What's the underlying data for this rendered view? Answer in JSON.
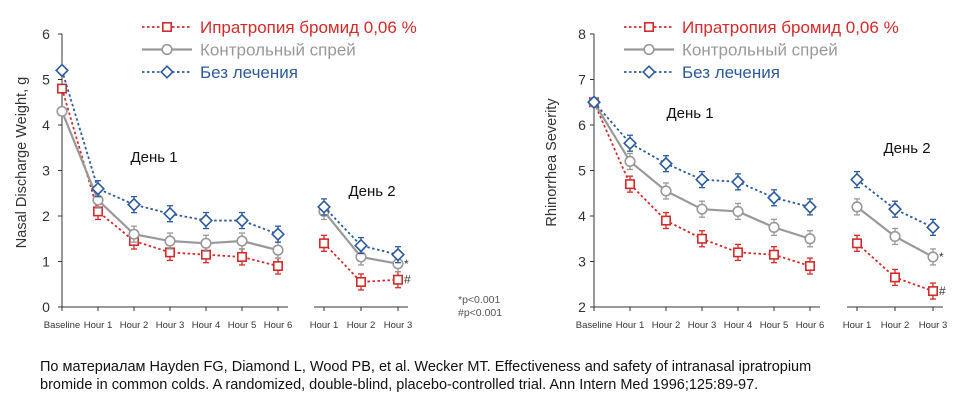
{
  "chart_data": [
    {
      "type": "line",
      "ylabel": "Nasal Discharge Weight, g",
      "ylim": [
        0,
        6
      ],
      "yticks": [
        "0",
        "1",
        "2",
        "3",
        "4",
        "5",
        "6"
      ],
      "legend_position": "top-center",
      "day_labels": {
        "day1": "День 1",
        "day2": "День 2"
      },
      "significance_note": [
        "*p<0.001",
        "#p<0.001"
      ],
      "panels": [
        {
          "categories": [
            "Baseline",
            "Hour 1",
            "Hour 2",
            "Hour 3",
            "Hour 4",
            "Hour 5",
            "Hour 6"
          ],
          "series": [
            {
              "name": "Ипратропия бромид 0,06 %",
              "color": "#d42a2a",
              "marker": "square",
              "dash": "dotted",
              "values": [
                4.8,
                2.1,
                1.45,
                1.2,
                1.15,
                1.1,
                0.9
              ]
            },
            {
              "name": "Контрольный спрей",
              "color": "#999999",
              "marker": "circle",
              "dash": "solid",
              "values": [
                4.3,
                2.35,
                1.6,
                1.45,
                1.4,
                1.45,
                1.25
              ]
            },
            {
              "name": "Без лечения",
              "color": "#2d5a9b",
              "marker": "diamond",
              "dash": "dotted",
              "values": [
                5.2,
                2.6,
                2.25,
                2.05,
                1.9,
                1.9,
                1.6
              ]
            }
          ]
        },
        {
          "categories": [
            "Hour 1",
            "Hour 2",
            "Hour 3"
          ],
          "series": [
            {
              "name": "Ипратропия бромид 0,06 %",
              "values": [
                1.4,
                0.55,
                0.6
              ]
            },
            {
              "name": "Контрольный спрей",
              "values": [
                2.1,
                1.1,
                0.95
              ]
            },
            {
              "name": "Без лечения",
              "values": [
                2.2,
                1.35,
                1.15
              ]
            }
          ],
          "markers": [
            "*",
            "#"
          ]
        }
      ]
    },
    {
      "type": "line",
      "ylabel": "Rhinorrhea Severity",
      "ylim": [
        2,
        8
      ],
      "yticks": [
        "2",
        "3",
        "4",
        "5",
        "6",
        "7",
        "8"
      ],
      "legend_position": "top-center",
      "day_labels": {
        "day1": "День 1",
        "day2": "День 2"
      },
      "panels": [
        {
          "categories": [
            "Baseline",
            "Hour 1",
            "Hour 2",
            "Hour 3",
            "Hour 4",
            "Hour 5",
            "Hour 6"
          ],
          "series": [
            {
              "name": "Ипратропия бромид 0,06 %",
              "color": "#d42a2a",
              "marker": "square",
              "dash": "dotted",
              "values": [
                6.5,
                4.7,
                3.9,
                3.5,
                3.2,
                3.15,
                2.9
              ]
            },
            {
              "name": "Контрольный спрей",
              "color": "#999999",
              "marker": "circle",
              "dash": "solid",
              "values": [
                6.5,
                5.2,
                4.55,
                4.15,
                4.1,
                3.75,
                3.5
              ]
            },
            {
              "name": "Без лечения",
              "color": "#2d5a9b",
              "marker": "diamond",
              "dash": "dotted",
              "values": [
                6.5,
                5.6,
                5.15,
                4.8,
                4.75,
                4.4,
                4.2
              ]
            }
          ]
        },
        {
          "categories": [
            "Hour 1",
            "Hour 2",
            "Hour 3"
          ],
          "series": [
            {
              "name": "Ипратропия бромид 0,06 %",
              "values": [
                3.4,
                2.65,
                2.35
              ]
            },
            {
              "name": "Контрольный спрей",
              "values": [
                4.2,
                3.55,
                3.1
              ]
            },
            {
              "name": "Без лечения",
              "values": [
                4.8,
                4.15,
                3.75
              ]
            }
          ],
          "markers": [
            "*",
            "#"
          ]
        }
      ]
    }
  ],
  "citation": {
    "line1": "По материалам Hayden FG, Diamond L, Wood PB, et al. Wecker MT. Effectiveness and safety of intranasal ipratropium",
    "line2": "bromide in common colds. A randomized, double-blind, placebo-controlled trial. Ann Intern Med 1996;125:89-97."
  }
}
